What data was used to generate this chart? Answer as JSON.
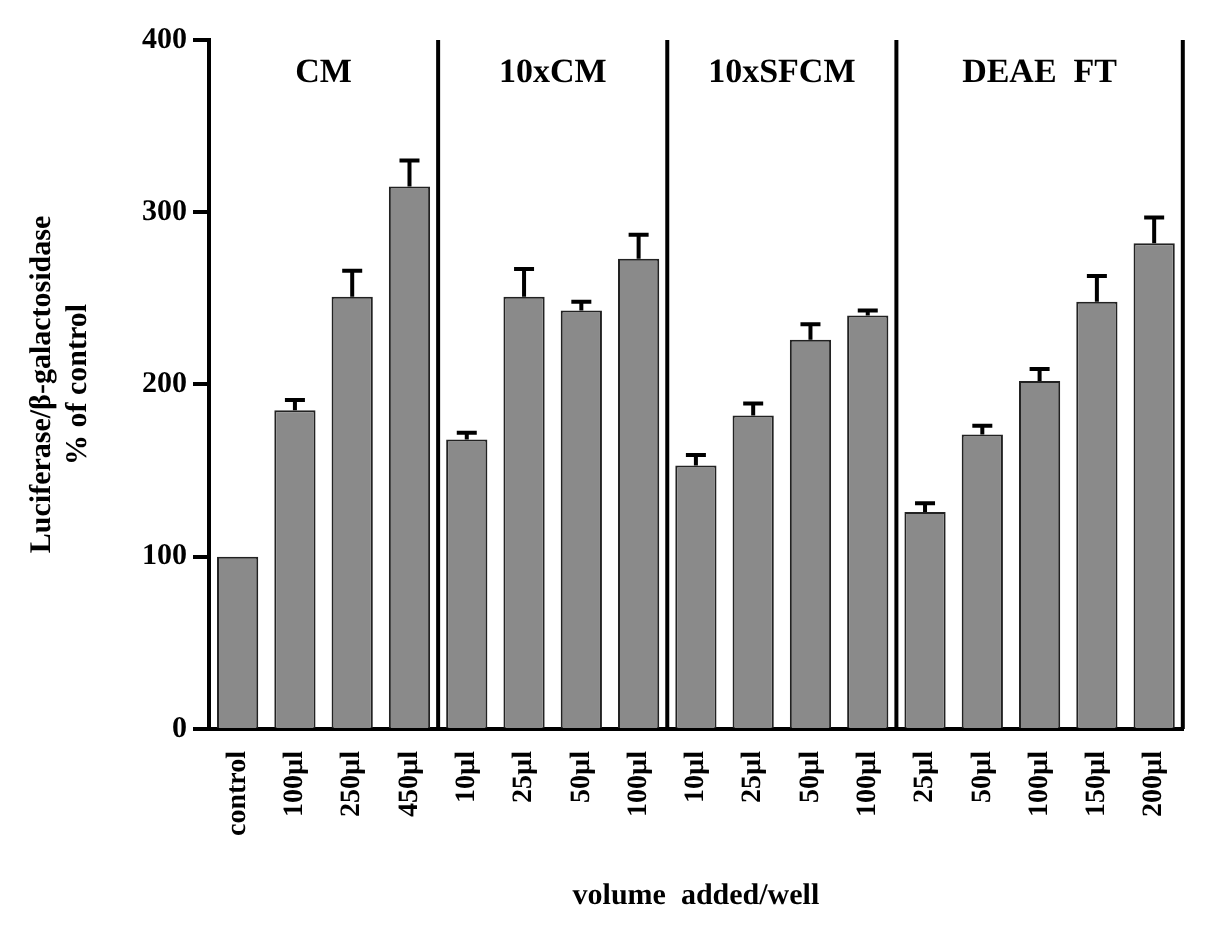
{
  "chart_data": {
    "type": "bar",
    "xlabel": "volume  added/well",
    "ylabel": "Luciferase/β-galactosidase\n% of control",
    "categories": [
      "control",
      "100µl",
      "250µl",
      "450µl",
      "10µl",
      "25µl",
      "50µl",
      "100µl",
      "10µl",
      "25µl",
      "50µl",
      "100µl",
      "25µl",
      "50µl",
      "100µl",
      "150µl",
      "200µl"
    ],
    "values": [
      100,
      185,
      251,
      315,
      168,
      251,
      243,
      273,
      153,
      182,
      226,
      240,
      126,
      171,
      202,
      248,
      282
    ],
    "errors": [
      null,
      [
        185,
        191
      ],
      [
        251,
        266
      ],
      [
        315,
        330
      ],
      [
        168,
        172
      ],
      [
        251,
        267
      ],
      [
        243,
        248
      ],
      [
        273,
        287
      ],
      [
        153,
        159
      ],
      [
        182,
        189
      ],
      [
        226,
        235
      ],
      [
        240,
        243
      ],
      [
        126,
        131
      ],
      [
        171,
        176
      ],
      [
        202,
        209
      ],
      [
        248,
        263
      ],
      [
        282,
        297
      ]
    ],
    "color": "#8a8a8a",
    "annotations": [
      "CM",
      "10xCM",
      "10xSFCM",
      "DEAE  FT"
    ],
    "ylim": [
      0,
      400
    ],
    "yticks": [
      0,
      100,
      200,
      300,
      400
    ],
    "grid": false,
    "legend": false
  }
}
